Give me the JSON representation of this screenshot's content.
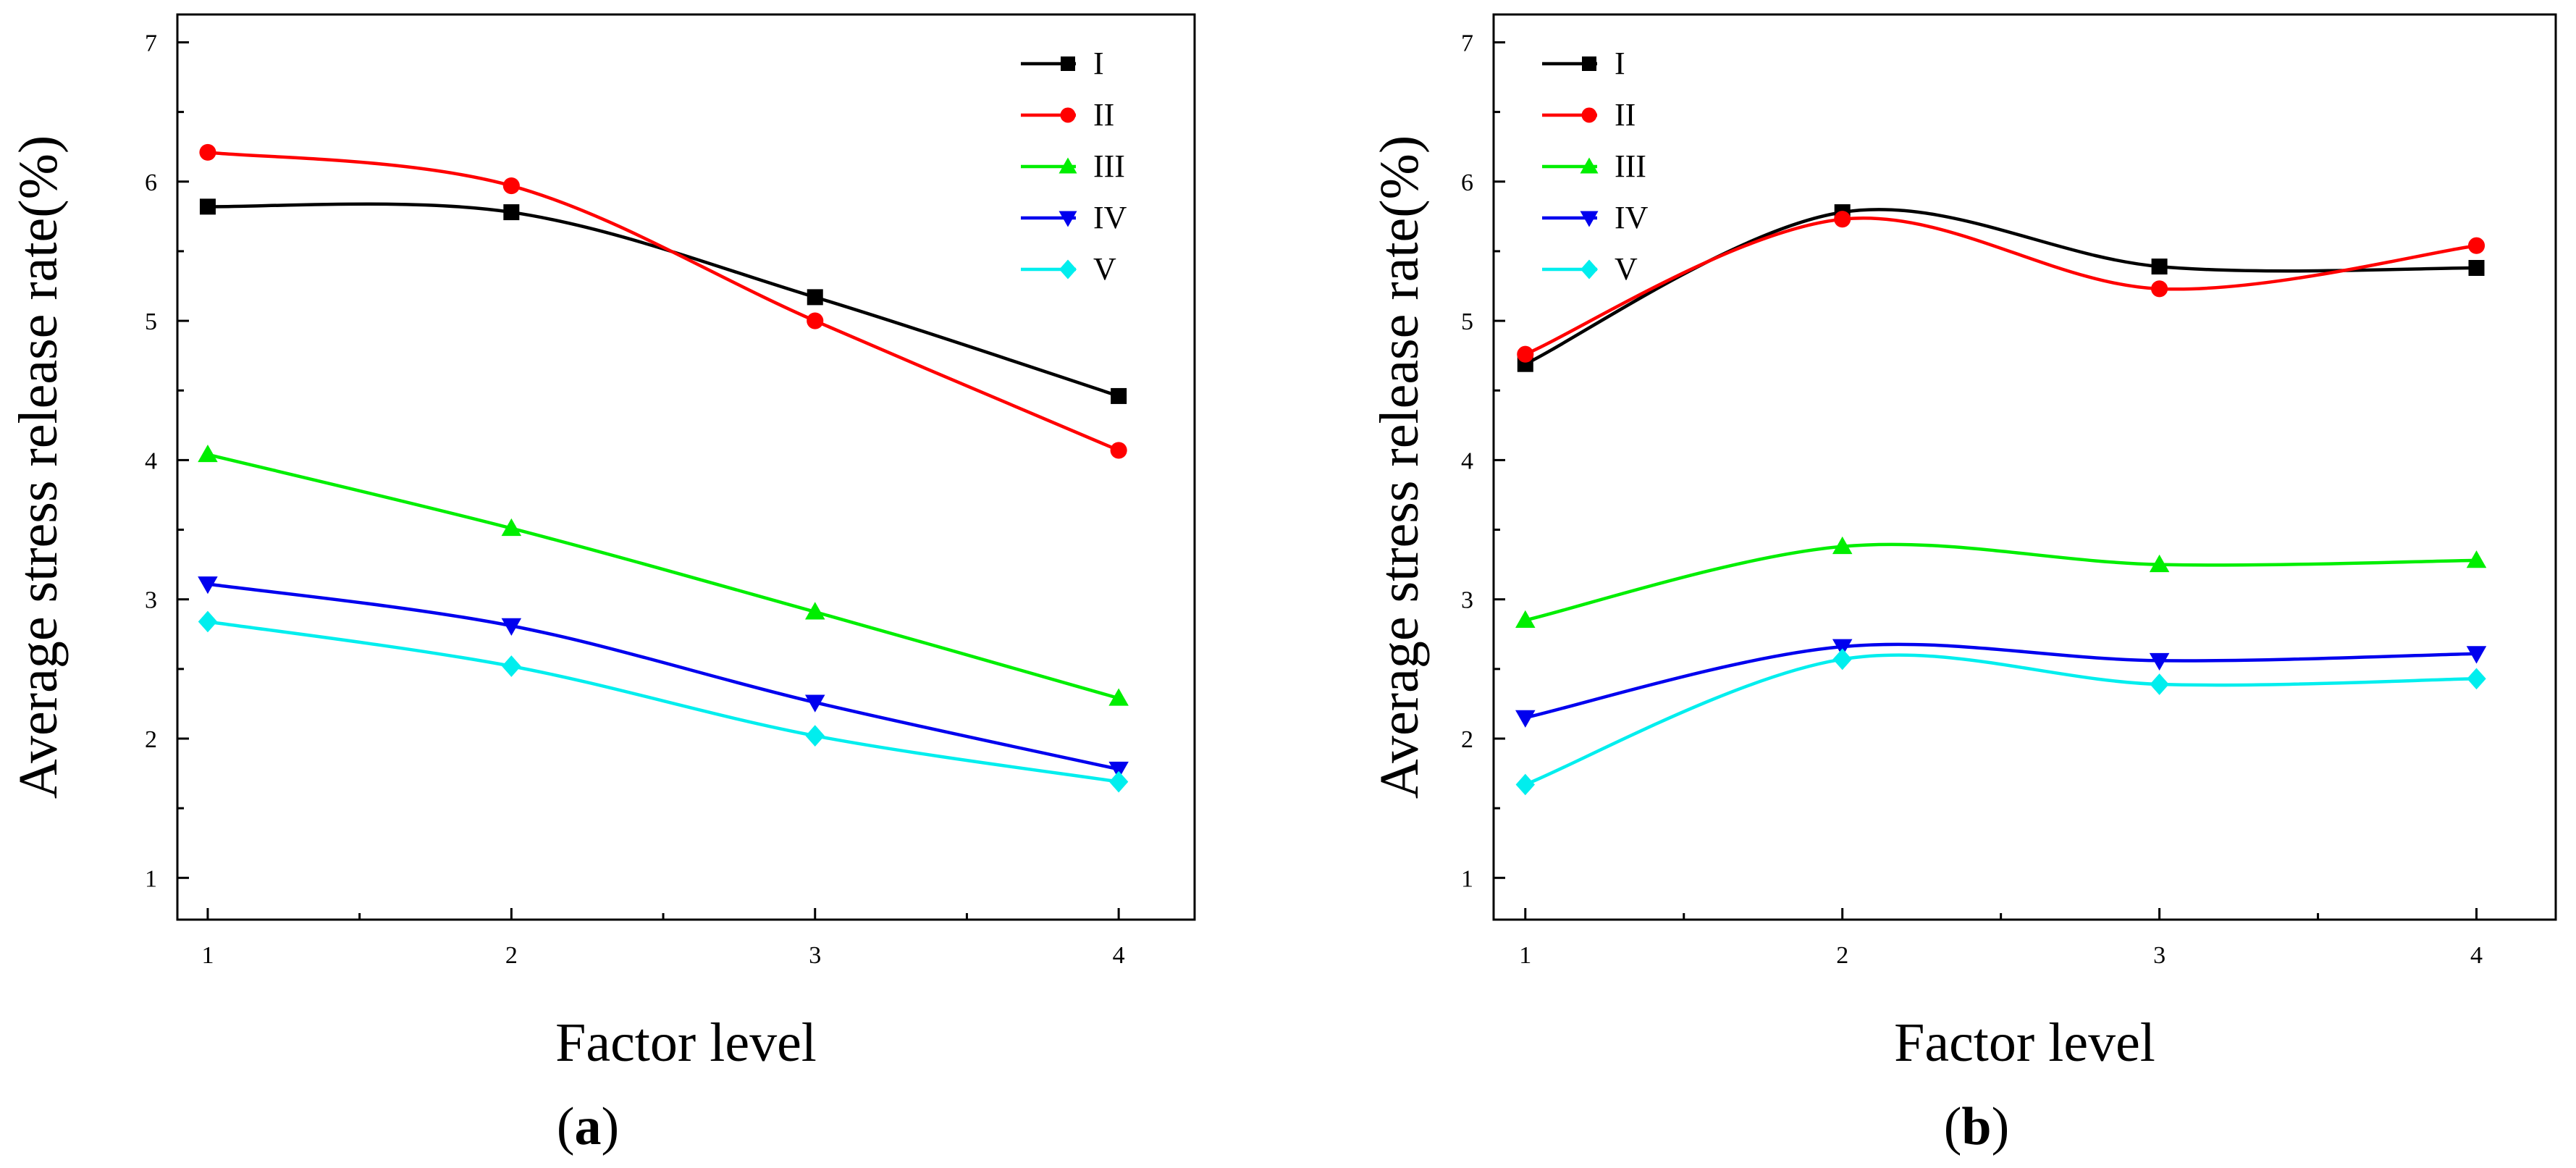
{
  "chart_data": [
    {
      "type": "line",
      "panel_label": "a",
      "xlabel": "Factor level",
      "ylabel": "Average stress release rate(%)",
      "x": [
        1,
        2,
        3,
        4
      ],
      "x_ticks": [
        "1",
        "2",
        "3",
        "4"
      ],
      "y_ticks": [
        "1",
        "2",
        "3",
        "4",
        "5",
        "6",
        "7"
      ],
      "xlim": [
        0.9,
        4.25
      ],
      "ylim": [
        0.7,
        7.2
      ],
      "grid": false,
      "legend_position": "top-right",
      "series": [
        {
          "name": "I",
          "color": "#000000",
          "marker": "square",
          "values": [
            5.82,
            5.78,
            5.17,
            4.46
          ]
        },
        {
          "name": "II",
          "color": "#ff0000",
          "marker": "circle",
          "values": [
            6.21,
            5.97,
            5.0,
            4.07
          ]
        },
        {
          "name": "III",
          "color": "#00ee00",
          "marker": "triangle-up",
          "values": [
            4.04,
            3.51,
            2.91,
            2.29
          ]
        },
        {
          "name": "IV",
          "color": "#0000ee",
          "marker": "triangle-down",
          "values": [
            3.11,
            2.81,
            2.26,
            1.78
          ]
        },
        {
          "name": "V",
          "color": "#00eeee",
          "marker": "diamond",
          "values": [
            2.84,
            2.52,
            2.02,
            1.69
          ]
        }
      ]
    },
    {
      "type": "line",
      "panel_label": "b",
      "xlabel": "Factor level",
      "ylabel": "Average stress release rate(%)",
      "x": [
        1,
        2,
        3,
        4
      ],
      "x_ticks": [
        "1",
        "2",
        "3",
        "4"
      ],
      "y_ticks": [
        "1",
        "2",
        "3",
        "4",
        "5",
        "6",
        "7"
      ],
      "xlim": [
        0.9,
        4.25
      ],
      "ylim": [
        0.7,
        7.2
      ],
      "grid": false,
      "legend_position": "top-left",
      "series": [
        {
          "name": "I",
          "color": "#000000",
          "marker": "square",
          "values": [
            4.69,
            5.78,
            5.39,
            5.38
          ]
        },
        {
          "name": "II",
          "color": "#ff0000",
          "marker": "circle",
          "values": [
            4.76,
            5.73,
            5.23,
            5.54
          ]
        },
        {
          "name": "III",
          "color": "#00ee00",
          "marker": "triangle-up",
          "values": [
            2.85,
            3.38,
            3.25,
            3.28
          ]
        },
        {
          "name": "IV",
          "color": "#0000ee",
          "marker": "triangle-down",
          "values": [
            2.15,
            2.66,
            2.56,
            2.61
          ]
        },
        {
          "name": "V",
          "color": "#00eeee",
          "marker": "diamond",
          "values": [
            1.67,
            2.57,
            2.39,
            2.43
          ]
        }
      ]
    }
  ]
}
